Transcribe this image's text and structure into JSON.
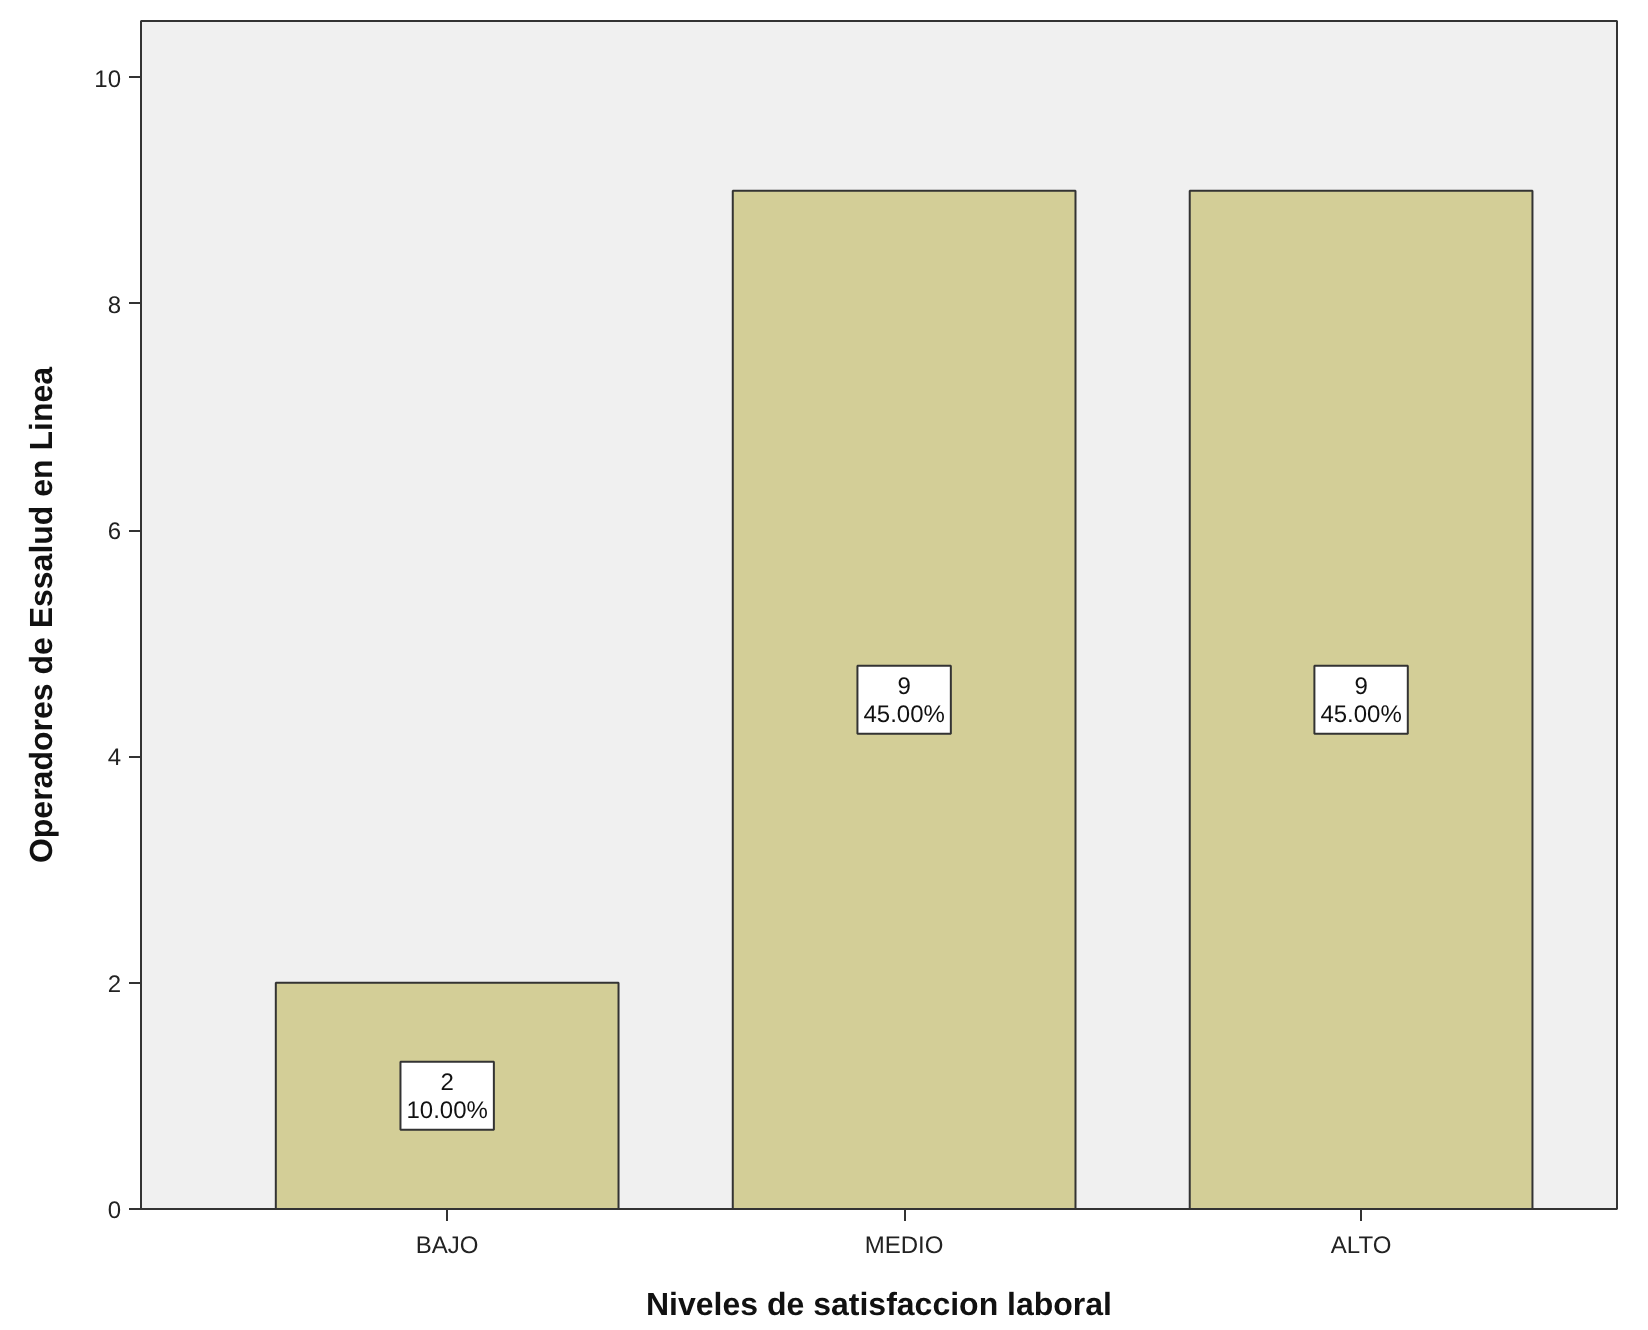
{
  "chart_data": {
    "type": "bar",
    "xlabel": "Niveles de satisfaccion laboral",
    "ylabel": "Operadores de Essalud en Linea",
    "categories": [
      "BAJO",
      "MEDIO",
      "ALTO"
    ],
    "values": [
      2,
      9,
      9
    ],
    "color": "#d3ce97",
    "value_labels": [
      "2\n10.00%",
      "9\n45.00%",
      "9\n45.00%"
    ],
    "ylim": [
      0,
      10.5
    ],
    "yticks": [
      0,
      2,
      4,
      6,
      8,
      10
    ]
  }
}
